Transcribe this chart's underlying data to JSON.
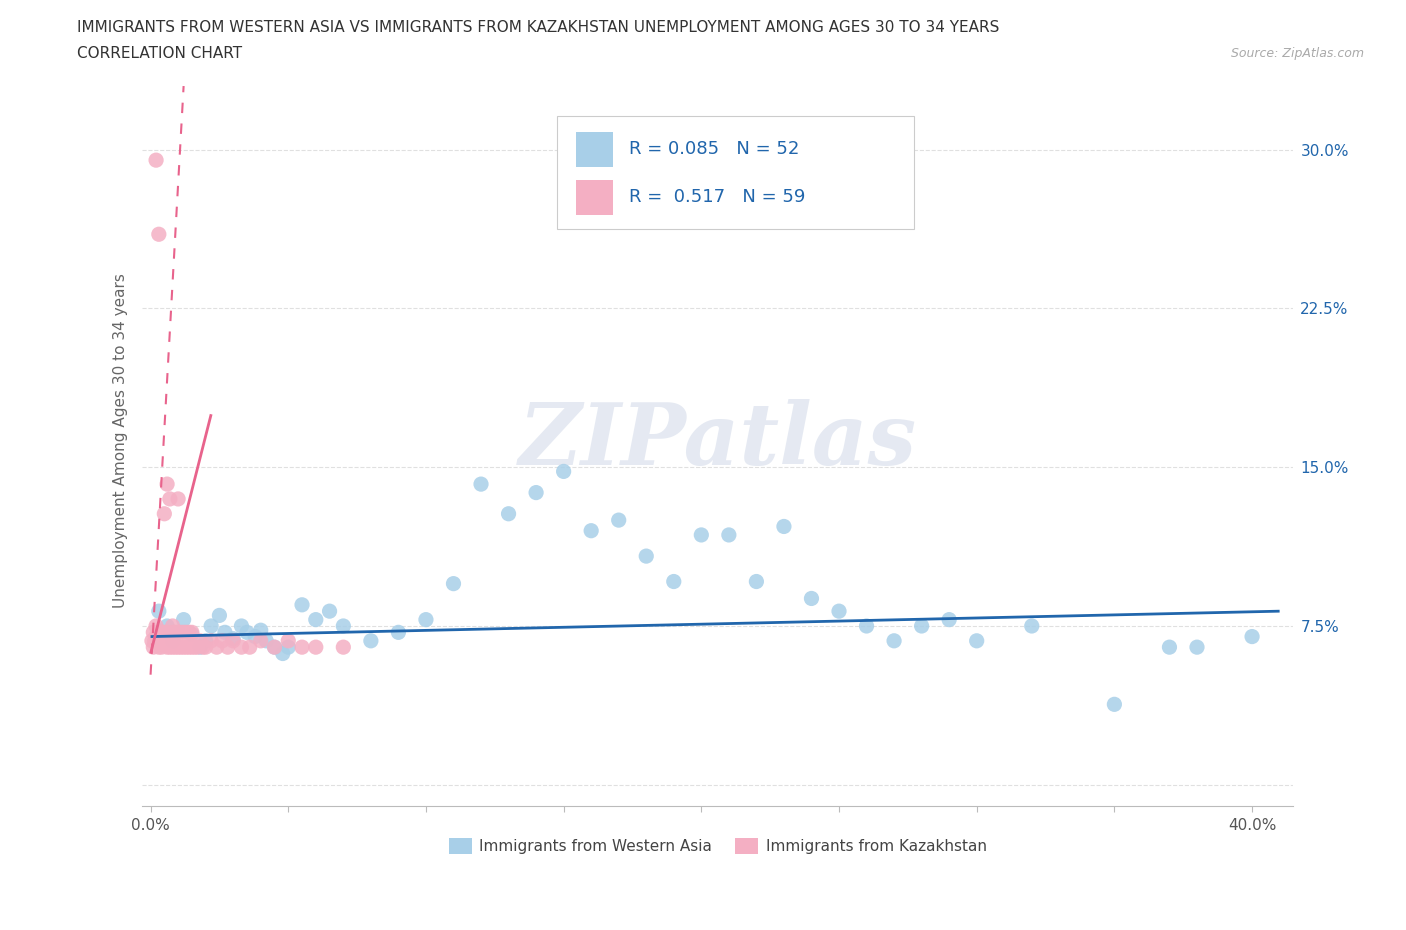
{
  "title_line1": "IMMIGRANTS FROM WESTERN ASIA VS IMMIGRANTS FROM KAZAKHSTAN UNEMPLOYMENT AMONG AGES 30 TO 34 YEARS",
  "title_line2": "CORRELATION CHART",
  "source_text": "Source: ZipAtlas.com",
  "ylabel": "Unemployment Among Ages 30 to 34 years",
  "xlim": [
    -0.003,
    0.415
  ],
  "ylim": [
    -0.01,
    0.335
  ],
  "blue_color": "#a8cfe8",
  "pink_color": "#f4afc3",
  "blue_line_color": "#2166ac",
  "pink_line_color": "#e8638c",
  "R_blue": "0.085",
  "N_blue": "52",
  "R_pink": "0.517",
  "N_pink": "59",
  "legend_label_blue": "Immigrants from Western Asia",
  "legend_label_pink": "Immigrants from Kazakhstan",
  "watermark": "ZIPatlas",
  "ytick_color": "#2166ac",
  "grid_color": "#e0e0e0",
  "blue_x": [
    0.003,
    0.006,
    0.008,
    0.01,
    0.012,
    0.015,
    0.018,
    0.02,
    0.022,
    0.025,
    0.027,
    0.03,
    0.033,
    0.035,
    0.038,
    0.04,
    0.042,
    0.045,
    0.048,
    0.05,
    0.055,
    0.06,
    0.065,
    0.07,
    0.08,
    0.09,
    0.1,
    0.11,
    0.12,
    0.13,
    0.14,
    0.15,
    0.16,
    0.17,
    0.18,
    0.19,
    0.2,
    0.21,
    0.22,
    0.23,
    0.24,
    0.25,
    0.26,
    0.27,
    0.28,
    0.29,
    0.3,
    0.32,
    0.35,
    0.37,
    0.38,
    0.4
  ],
  "blue_y": [
    0.082,
    0.075,
    0.068,
    0.072,
    0.078,
    0.071,
    0.065,
    0.068,
    0.075,
    0.08,
    0.072,
    0.069,
    0.075,
    0.072,
    0.07,
    0.073,
    0.068,
    0.065,
    0.062,
    0.065,
    0.085,
    0.078,
    0.082,
    0.075,
    0.068,
    0.072,
    0.078,
    0.095,
    0.142,
    0.128,
    0.138,
    0.148,
    0.12,
    0.125,
    0.108,
    0.096,
    0.118,
    0.118,
    0.096,
    0.122,
    0.088,
    0.082,
    0.075,
    0.068,
    0.075,
    0.078,
    0.068,
    0.075,
    0.038,
    0.065,
    0.065,
    0.07
  ],
  "pink_x": [
    0.0005,
    0.001,
    0.001,
    0.0015,
    0.002,
    0.002,
    0.002,
    0.003,
    0.003,
    0.003,
    0.003,
    0.004,
    0.004,
    0.004,
    0.005,
    0.005,
    0.005,
    0.006,
    0.006,
    0.006,
    0.007,
    0.007,
    0.007,
    0.008,
    0.008,
    0.008,
    0.009,
    0.009,
    0.01,
    0.01,
    0.01,
    0.011,
    0.011,
    0.012,
    0.012,
    0.013,
    0.013,
    0.014,
    0.014,
    0.015,
    0.015,
    0.016,
    0.017,
    0.018,
    0.019,
    0.02,
    0.022,
    0.024,
    0.026,
    0.028,
    0.03,
    0.033,
    0.036,
    0.04,
    0.045,
    0.05,
    0.055,
    0.06,
    0.07
  ],
  "pink_y": [
    0.068,
    0.065,
    0.072,
    0.068,
    0.075,
    0.07,
    0.295,
    0.065,
    0.072,
    0.068,
    0.26,
    0.065,
    0.072,
    0.068,
    0.072,
    0.068,
    0.128,
    0.065,
    0.072,
    0.142,
    0.065,
    0.068,
    0.135,
    0.065,
    0.072,
    0.075,
    0.065,
    0.072,
    0.065,
    0.072,
    0.135,
    0.065,
    0.072,
    0.065,
    0.072,
    0.065,
    0.072,
    0.065,
    0.072,
    0.065,
    0.072,
    0.065,
    0.065,
    0.068,
    0.065,
    0.065,
    0.068,
    0.065,
    0.068,
    0.065,
    0.068,
    0.065,
    0.065,
    0.068,
    0.065,
    0.068,
    0.065,
    0.065,
    0.065
  ],
  "blue_trend_x0": 0.0,
  "blue_trend_x1": 0.41,
  "blue_trend_y0": 0.07,
  "blue_trend_y1": 0.082,
  "pink_trend_x0": 0.0,
  "pink_trend_x1": 0.022,
  "pink_trend_y0": 0.062,
  "pink_trend_y1": 0.175
}
